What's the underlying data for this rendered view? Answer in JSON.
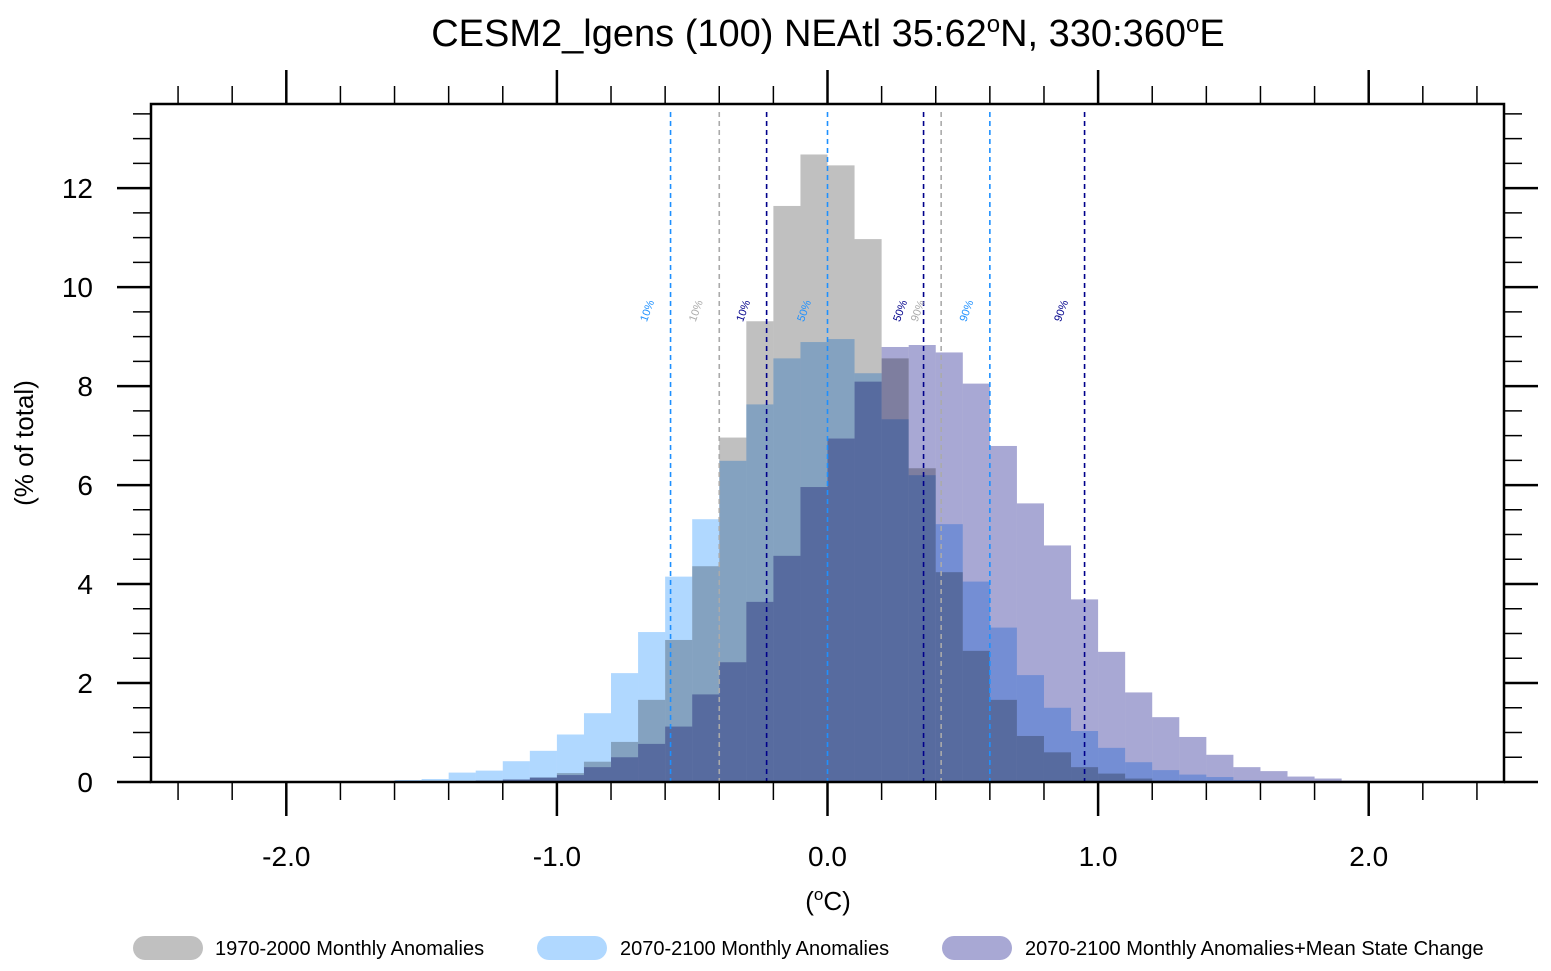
{
  "chart_data": {
    "type": "bar",
    "subtype": "overlapping histogram",
    "title_parts": [
      "CESM2_lgens (100) NEAtl  35:62",
      "o",
      "N, 330:360",
      "o",
      "E"
    ],
    "xlabel_parts": [
      "(",
      "o",
      "C)"
    ],
    "ylabel": "(% of total)",
    "xlim": [
      -2.5,
      2.5
    ],
    "ylim": [
      0,
      13.7
    ],
    "x_ticks": [
      -2.0,
      -1.0,
      0.0,
      1.0,
      2.0
    ],
    "x_tick_labels": [
      "-2.0",
      "-1.0",
      "0.0",
      "1.0",
      "2.0"
    ],
    "y_ticks": [
      0,
      2,
      4,
      6,
      8,
      10,
      12
    ],
    "y_tick_labels": [
      "0",
      "2",
      "4",
      "6",
      "8",
      "10",
      "12"
    ],
    "bin_width": 0.1,
    "x": [
      -2.15,
      -2.05,
      -1.95,
      -1.85,
      -1.75,
      -1.65,
      -1.55,
      -1.45,
      -1.35,
      -1.25,
      -1.15,
      -1.05,
      -0.95,
      -0.85,
      -0.75,
      -0.65,
      -0.55,
      -0.45,
      -0.35,
      -0.25,
      -0.15,
      -0.05,
      0.05,
      0.15,
      0.25,
      0.35,
      0.45,
      0.55,
      0.65,
      0.75,
      0.85,
      0.95,
      1.05,
      1.15,
      1.25,
      1.35,
      1.45,
      1.55,
      1.65,
      1.75,
      1.85,
      1.95,
      2.05,
      2.15,
      2.25,
      2.35
    ],
    "series": [
      {
        "name": "1970-2000 Monthly Anomalies",
        "color": "#c0c0c0",
        "values": [
          0.01,
          0.01,
          0.01,
          0.01,
          0,
          0.01,
          0.01,
          0.01,
          0.02,
          0.03,
          0.05,
          0.09,
          0.18,
          0.41,
          0.81,
          1.66,
          2.87,
          4.36,
          6.96,
          9.31,
          11.64,
          12.68,
          12.46,
          10.97,
          8.56,
          6.34,
          4.24,
          2.65,
          1.66,
          0.93,
          0.6,
          0.3,
          0.17,
          0.07,
          0.03,
          0.01,
          0,
          0,
          0,
          0,
          0,
          0,
          0,
          0,
          0,
          0
        ]
      },
      {
        "name": "2070-2100 Monthly Anomalies",
        "color": "#b0d8ff",
        "values": [
          0.01,
          0.01,
          0.01,
          0.01,
          0.02,
          0.02,
          0.04,
          0.06,
          0.19,
          0.23,
          0.42,
          0.63,
          0.96,
          1.39,
          2.2,
          3.03,
          4.15,
          5.31,
          6.49,
          7.63,
          8.56,
          8.89,
          8.95,
          8.26,
          7.33,
          6.2,
          5.21,
          4.05,
          3.12,
          2.16,
          1.5,
          1.03,
          0.69,
          0.4,
          0.24,
          0.15,
          0.1,
          0.04,
          0.02,
          0.01,
          0,
          0,
          0,
          0,
          0,
          0
        ]
      },
      {
        "name": "2070-2100 Monthly Anomalies+Mean State Change",
        "color": "#a8a8d4",
        "values": [
          0,
          0,
          0,
          0,
          0,
          0,
          0,
          0,
          0.01,
          0.03,
          0.05,
          0.09,
          0.14,
          0.3,
          0.5,
          0.77,
          1.12,
          1.77,
          2.42,
          3.64,
          4.57,
          5.96,
          6.94,
          8.09,
          8.79,
          8.83,
          8.68,
          8.05,
          6.79,
          5.63,
          4.78,
          3.69,
          2.63,
          1.81,
          1.31,
          0.91,
          0.55,
          0.3,
          0.22,
          0.11,
          0.07,
          0.03,
          0.02,
          0.01,
          0.01,
          0.01
        ]
      }
    ],
    "percentile_lines": [
      {
        "label": "10%",
        "x": -0.58,
        "color": "#1e90ff"
      },
      {
        "label": "10%",
        "x": -0.4,
        "color": "#aaaaaa"
      },
      {
        "label": "10%",
        "x": -0.225,
        "color": "#00008b"
      },
      {
        "label": "50%",
        "x": 0.0,
        "color": "#1e90ff"
      },
      {
        "label": "50%",
        "x": 0.355,
        "color": "#00008b"
      },
      {
        "label": "90%",
        "x": 0.42,
        "color": "#aaaaaa"
      },
      {
        "label": "90%",
        "x": 0.6,
        "color": "#1e90ff"
      },
      {
        "label": "90%",
        "x": 0.95,
        "color": "#00008b"
      }
    ],
    "legend_position": "bottom",
    "grid": false
  }
}
